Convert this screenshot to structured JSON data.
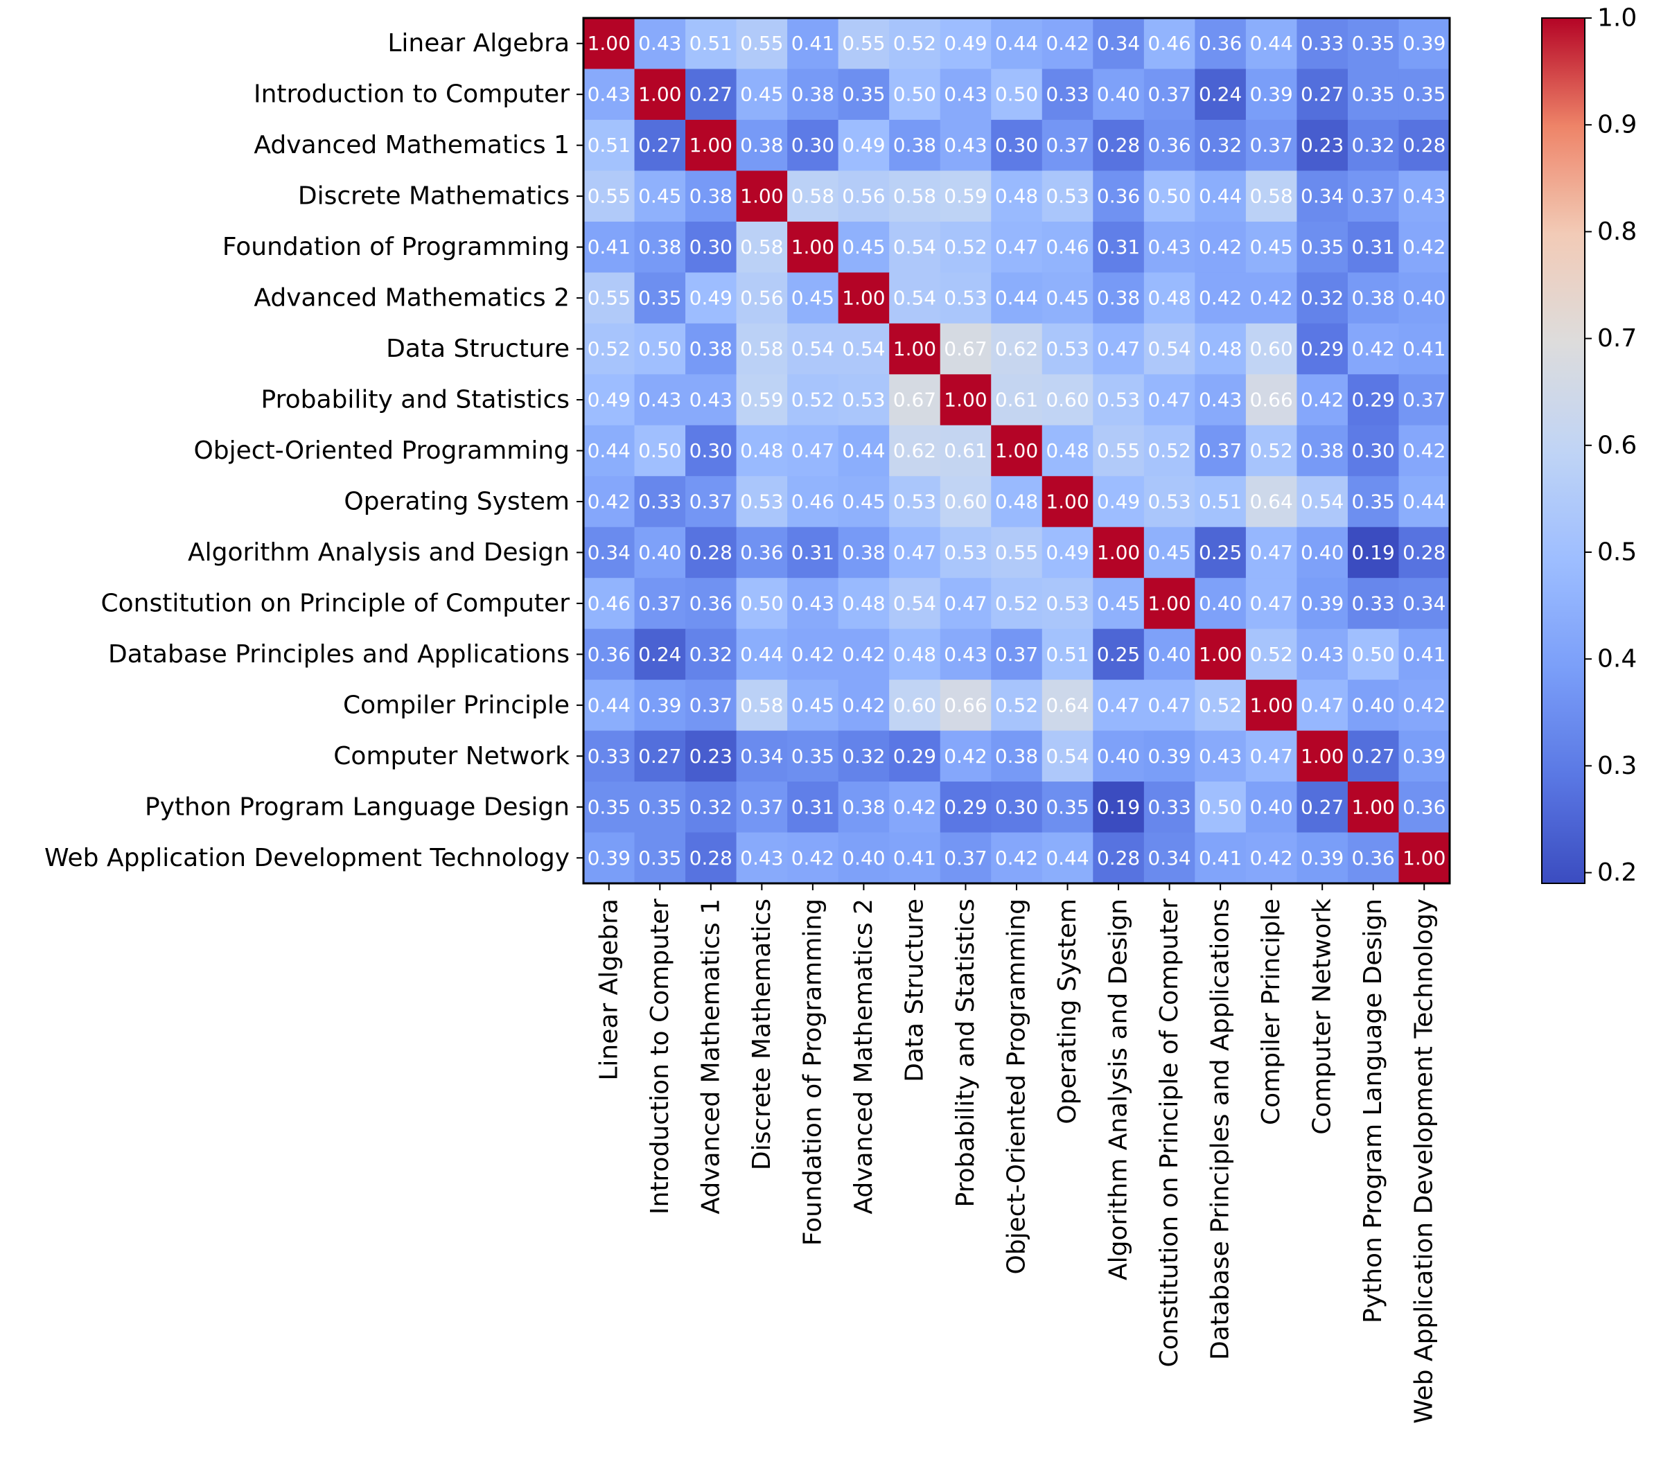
{
  "chart_data": {
    "type": "heatmap",
    "title": "",
    "xlabel": "",
    "ylabel": "",
    "colormap": "coolwarm",
    "value_range": [
      0.19,
      1.0
    ],
    "colorbar": {
      "ticks": [
        "0.2",
        "0.3",
        "0.4",
        "0.5",
        "0.6",
        "0.7",
        "0.8",
        "0.9",
        "1.0"
      ],
      "tick_values": [
        0.2,
        0.3,
        0.4,
        0.5,
        0.6,
        0.7,
        0.8,
        0.9,
        1.0
      ]
    },
    "categories": [
      "Linear Algebra",
      "Introduction to Computer",
      "Advanced Mathematics 1",
      "Discrete Mathematics",
      "Foundation of Programming",
      "Advanced Mathematics 2",
      "Data Structure",
      "Probability and Statistics",
      "Object-Oriented Programming",
      "Operating System",
      "Algorithm Analysis and Design",
      "Constitution on Principle of Computer",
      "Database Principles and Applications",
      "Compiler Principle",
      "Computer Network",
      "Python Program Language Design",
      "Web Application Development Technology"
    ],
    "values": [
      [
        1.0,
        0.43,
        0.51,
        0.55,
        0.41,
        0.55,
        0.52,
        0.49,
        0.44,
        0.42,
        0.34,
        0.46,
        0.36,
        0.44,
        0.33,
        0.35,
        0.39
      ],
      [
        0.43,
        1.0,
        0.27,
        0.45,
        0.38,
        0.35,
        0.5,
        0.43,
        0.5,
        0.33,
        0.4,
        0.37,
        0.24,
        0.39,
        0.27,
        0.35,
        0.35
      ],
      [
        0.51,
        0.27,
        1.0,
        0.38,
        0.3,
        0.49,
        0.38,
        0.43,
        0.3,
        0.37,
        0.28,
        0.36,
        0.32,
        0.37,
        0.23,
        0.32,
        0.28
      ],
      [
        0.55,
        0.45,
        0.38,
        1.0,
        0.58,
        0.56,
        0.58,
        0.59,
        0.48,
        0.53,
        0.36,
        0.5,
        0.44,
        0.58,
        0.34,
        0.37,
        0.43
      ],
      [
        0.41,
        0.38,
        0.3,
        0.58,
        1.0,
        0.45,
        0.54,
        0.52,
        0.47,
        0.46,
        0.31,
        0.43,
        0.42,
        0.45,
        0.35,
        0.31,
        0.42
      ],
      [
        0.55,
        0.35,
        0.49,
        0.56,
        0.45,
        1.0,
        0.54,
        0.53,
        0.44,
        0.45,
        0.38,
        0.48,
        0.42,
        0.42,
        0.32,
        0.38,
        0.4
      ],
      [
        0.52,
        0.5,
        0.38,
        0.58,
        0.54,
        0.54,
        1.0,
        0.67,
        0.62,
        0.53,
        0.47,
        0.54,
        0.48,
        0.6,
        0.29,
        0.42,
        0.41
      ],
      [
        0.49,
        0.43,
        0.43,
        0.59,
        0.52,
        0.53,
        0.67,
        1.0,
        0.61,
        0.6,
        0.53,
        0.47,
        0.43,
        0.66,
        0.42,
        0.29,
        0.37
      ],
      [
        0.44,
        0.5,
        0.3,
        0.48,
        0.47,
        0.44,
        0.62,
        0.61,
        1.0,
        0.48,
        0.55,
        0.52,
        0.37,
        0.52,
        0.38,
        0.3,
        0.42
      ],
      [
        0.42,
        0.33,
        0.37,
        0.53,
        0.46,
        0.45,
        0.53,
        0.6,
        0.48,
        1.0,
        0.49,
        0.53,
        0.51,
        0.64,
        0.54,
        0.35,
        0.44
      ],
      [
        0.34,
        0.4,
        0.28,
        0.36,
        0.31,
        0.38,
        0.47,
        0.53,
        0.55,
        0.49,
        1.0,
        0.45,
        0.25,
        0.47,
        0.4,
        0.19,
        0.28
      ],
      [
        0.46,
        0.37,
        0.36,
        0.5,
        0.43,
        0.48,
        0.54,
        0.47,
        0.52,
        0.53,
        0.45,
        1.0,
        0.4,
        0.47,
        0.39,
        0.33,
        0.34
      ],
      [
        0.36,
        0.24,
        0.32,
        0.44,
        0.42,
        0.42,
        0.48,
        0.43,
        0.37,
        0.51,
        0.25,
        0.4,
        1.0,
        0.52,
        0.43,
        0.5,
        0.41
      ],
      [
        0.44,
        0.39,
        0.37,
        0.58,
        0.45,
        0.42,
        0.6,
        0.66,
        0.52,
        0.64,
        0.47,
        0.47,
        0.52,
        1.0,
        0.47,
        0.4,
        0.42
      ],
      [
        0.33,
        0.27,
        0.23,
        0.34,
        0.35,
        0.32,
        0.29,
        0.42,
        0.38,
        0.54,
        0.4,
        0.39,
        0.43,
        0.47,
        1.0,
        0.27,
        0.39
      ],
      [
        0.35,
        0.35,
        0.32,
        0.37,
        0.31,
        0.38,
        0.42,
        0.29,
        0.3,
        0.35,
        0.19,
        0.33,
        0.5,
        0.4,
        0.27,
        1.0,
        0.36
      ],
      [
        0.39,
        0.35,
        0.28,
        0.43,
        0.42,
        0.4,
        0.41,
        0.37,
        0.42,
        0.44,
        0.28,
        0.34,
        0.41,
        0.42,
        0.39,
        0.36,
        1.0
      ]
    ],
    "value_format": "0.00",
    "legend": "right"
  }
}
